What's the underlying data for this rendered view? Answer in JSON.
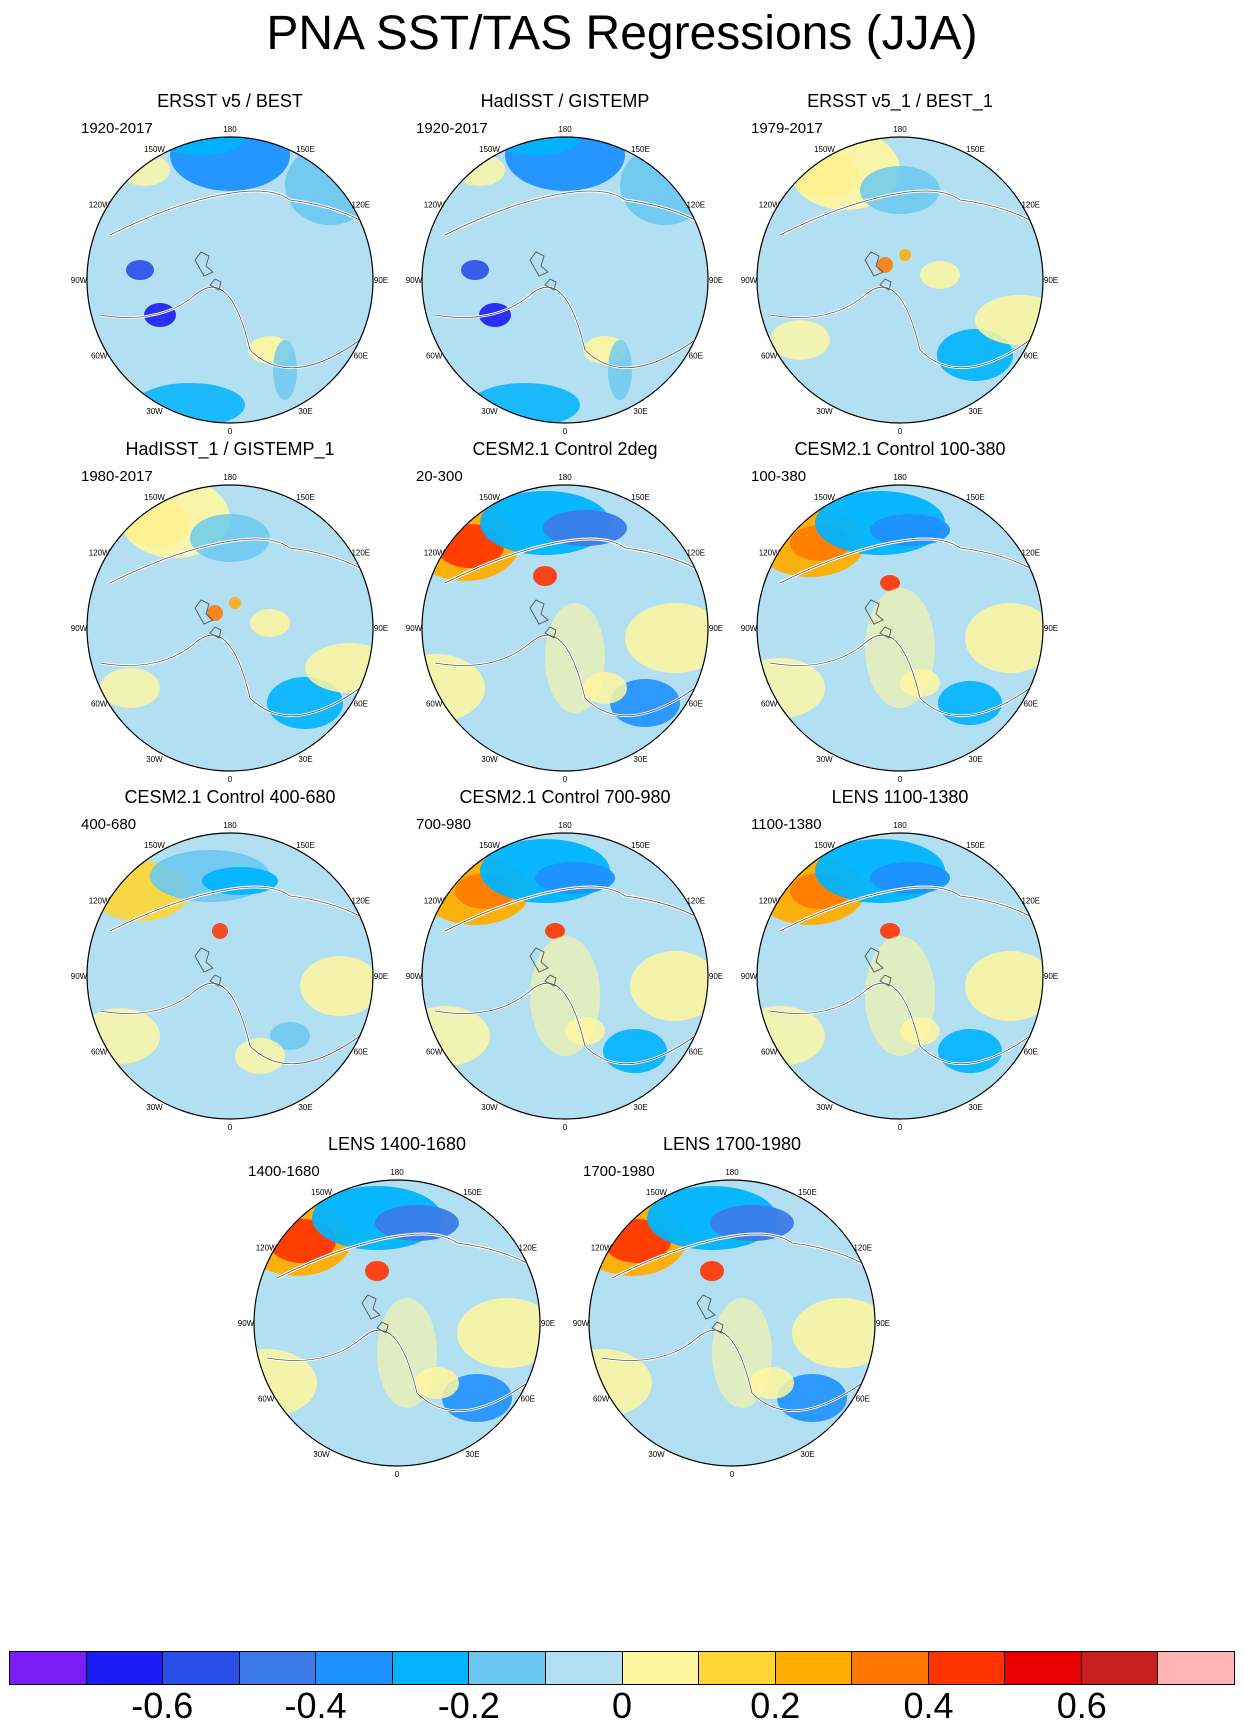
{
  "title": "PNA SST/TAS Regressions (JJA)",
  "colorbar": {
    "colors": [
      "#7a1cf5",
      "#1c1cf5",
      "#2a4ee8",
      "#3a7be8",
      "#1e90ff",
      "#00b4ff",
      "#6ac8f0",
      "#b2dff2",
      "#fff7a0",
      "#ffd633",
      "#ffad00",
      "#ff7700",
      "#ff3300",
      "#e60000",
      "#c81e1e",
      "#ffb3b3"
    ],
    "labels": [
      "-0.6",
      "-0.4",
      "-0.2",
      "0",
      "0.2",
      "0.4",
      "0.6"
    ]
  },
  "longitude_labels": [
    "180",
    "150E",
    "120E",
    "90E",
    "60E",
    "30E",
    "0",
    "30W",
    "60W",
    "90W",
    "120W",
    "150W"
  ],
  "panels": [
    {
      "title": "ERSST v5 / BEST",
      "period": "1920-2017",
      "style": "obs_blue"
    },
    {
      "title": "HadISST / GISTEMP",
      "period": "1920-2017",
      "style": "obs_blue"
    },
    {
      "title": "ERSST v5_1 / BEST_1",
      "period": "1979-2017",
      "style": "obs_recent"
    },
    {
      "title": "HadISST_1 / GISTEMP_1",
      "period": "1980-2017",
      "style": "obs_recent"
    },
    {
      "title": "CESM2.1 Control 2deg",
      "period": "20-300",
      "style": "model_strong"
    },
    {
      "title": "CESM2.1 Control 100-380",
      "period": "100-380",
      "style": "model"
    },
    {
      "title": "CESM2.1 Control 400-680",
      "period": "400-680",
      "style": "model_weak"
    },
    {
      "title": "CESM2.1 Control 700-980",
      "period": "700-980",
      "style": "model"
    },
    {
      "title": "LENS 1100-1380",
      "period": "1100-1380",
      "style": "model"
    },
    {
      "title": "LENS 1400-1680",
      "period": "1400-1680",
      "style": "model_strong"
    },
    {
      "title": "LENS 1700-1980",
      "period": "1700-1980",
      "style": "model_strong"
    }
  ]
}
